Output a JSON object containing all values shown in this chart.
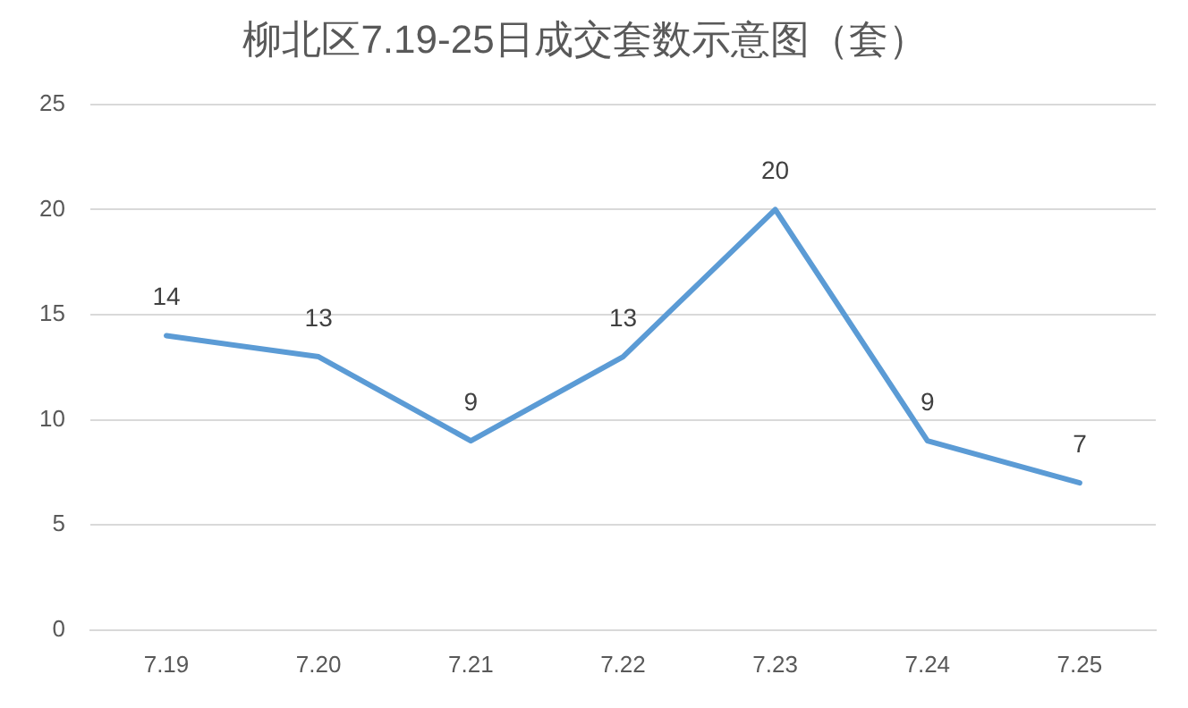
{
  "chart_data": {
    "type": "line",
    "title": "柳北区7.19-25日成交套数示意图（套）",
    "categories": [
      "7.19",
      "7.20",
      "7.21",
      "7.22",
      "7.23",
      "7.24",
      "7.25"
    ],
    "series": [
      {
        "color": "#5b9bd5",
        "values": [
          14,
          13,
          9,
          13,
          20,
          9,
          7
        ]
      }
    ],
    "ylim": [
      0,
      25
    ],
    "yticks": [
      0,
      5,
      10,
      15,
      20,
      25
    ],
    "grid": "y",
    "legend": false,
    "marker": "none",
    "line_style": "solid",
    "data_labels": true
  }
}
